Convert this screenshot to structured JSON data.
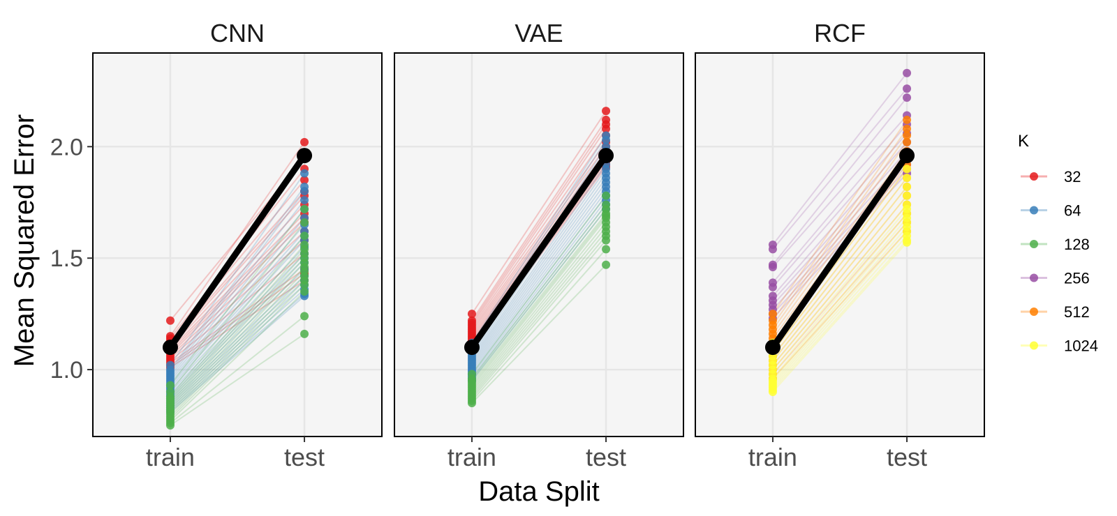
{
  "chart_data": {
    "type": "line",
    "facets": [
      "CNN",
      "VAE",
      "RCF"
    ],
    "x_categories": [
      "train",
      "test"
    ],
    "xlabel": "Data Split",
    "ylabel": "Mean Squared Error",
    "ylim": [
      0.7,
      2.42
    ],
    "yticks": [
      1.0,
      1.5,
      2.0
    ],
    "ytick_labels": [
      "1.0",
      "1.5",
      "2.0"
    ],
    "grid": true,
    "legend": {
      "title": "K",
      "position": "right",
      "entries": [
        {
          "label": "32",
          "color": "#e41a1c"
        },
        {
          "label": "64",
          "color": "#377eb8"
        },
        {
          "label": "128",
          "color": "#4daf4a"
        },
        {
          "label": "256",
          "color": "#984ea3"
        },
        {
          "label": "512",
          "color": "#ff7f00"
        },
        {
          "label": "1024",
          "color": "#ffff33"
        }
      ]
    },
    "mean_line": {
      "color": "#000000",
      "train": 1.1,
      "test": 1.96
    },
    "panels": [
      {
        "name": "CNN",
        "series": [
          {
            "k": "32",
            "color": "#e41a1c",
            "pairs": [
              [
                1.22,
                1.95
              ],
              [
                1.15,
                2.02
              ],
              [
                1.14,
                1.9
              ],
              [
                1.13,
                1.85
              ],
              [
                1.12,
                1.8
              ],
              [
                1.11,
                1.78
              ],
              [
                1.1,
                1.74
              ],
              [
                1.09,
                1.7
              ],
              [
                1.08,
                1.68
              ],
              [
                1.07,
                1.66
              ],
              [
                1.06,
                1.62
              ],
              [
                1.05,
                1.58
              ],
              [
                1.04,
                1.52
              ],
              [
                1.03,
                1.45
              ],
              [
                1.02,
                1.43
              ],
              [
                1.01,
                1.4
              ]
            ]
          },
          {
            "k": "64",
            "color": "#377eb8",
            "pairs": [
              [
                1.02,
                1.88
              ],
              [
                1.0,
                1.82
              ],
              [
                0.99,
                1.8
              ],
              [
                0.98,
                1.76
              ],
              [
                0.97,
                1.72
              ],
              [
                0.96,
                1.68
              ],
              [
                0.95,
                1.65
              ],
              [
                0.94,
                1.62
              ],
              [
                0.93,
                1.6
              ],
              [
                0.92,
                1.58
              ],
              [
                0.91,
                1.55
              ],
              [
                0.9,
                1.52
              ],
              [
                0.89,
                1.5
              ],
              [
                0.88,
                1.48
              ],
              [
                0.87,
                1.45
              ],
              [
                0.86,
                1.42
              ],
              [
                0.85,
                1.4
              ],
              [
                0.84,
                1.38
              ],
              [
                0.83,
                1.36
              ],
              [
                0.82,
                1.34
              ],
              [
                0.81,
                1.33
              ]
            ]
          },
          {
            "k": "128",
            "color": "#4daf4a",
            "pairs": [
              [
                0.93,
                1.72
              ],
              [
                0.9,
                1.66
              ],
              [
                0.88,
                1.6
              ],
              [
                0.87,
                1.56
              ],
              [
                0.86,
                1.54
              ],
              [
                0.85,
                1.52
              ],
              [
                0.84,
                1.5
              ],
              [
                0.83,
                1.48
              ],
              [
                0.82,
                1.46
              ],
              [
                0.81,
                1.44
              ],
              [
                0.8,
                1.42
              ],
              [
                0.79,
                1.4
              ],
              [
                0.78,
                1.38
              ],
              [
                0.77,
                1.35
              ],
              [
                0.76,
                1.24
              ],
              [
                0.75,
                1.16
              ]
            ]
          }
        ]
      },
      {
        "name": "VAE",
        "series": [
          {
            "k": "32",
            "color": "#e41a1c",
            "pairs": [
              [
                1.25,
                2.16
              ],
              [
                1.22,
                2.12
              ],
              [
                1.21,
                2.1
              ],
              [
                1.2,
                2.08
              ],
              [
                1.19,
                2.05
              ],
              [
                1.18,
                2.02
              ],
              [
                1.17,
                2.0
              ],
              [
                1.16,
                1.98
              ],
              [
                1.15,
                1.96
              ],
              [
                1.14,
                1.95
              ],
              [
                1.13,
                1.94
              ],
              [
                1.12,
                1.93
              ],
              [
                1.11,
                1.92
              ],
              [
                1.1,
                1.91
              ]
            ]
          },
          {
            "k": "64",
            "color": "#377eb8",
            "pairs": [
              [
                1.12,
                2.05
              ],
              [
                1.1,
                2.03
              ],
              [
                1.08,
                2.0
              ],
              [
                1.07,
                1.98
              ],
              [
                1.06,
                1.95
              ],
              [
                1.05,
                1.92
              ],
              [
                1.04,
                1.9
              ],
              [
                1.03,
                1.88
              ],
              [
                1.02,
                1.86
              ],
              [
                1.01,
                1.84
              ],
              [
                1.0,
                1.82
              ],
              [
                0.99,
                1.8
              ],
              [
                0.98,
                1.78
              ],
              [
                0.97,
                1.76
              ],
              [
                0.96,
                1.74
              ],
              [
                0.95,
                1.72
              ]
            ]
          },
          {
            "k": "128",
            "color": "#4daf4a",
            "pairs": [
              [
                0.98,
                1.78
              ],
              [
                0.96,
                1.74
              ],
              [
                0.95,
                1.72
              ],
              [
                0.94,
                1.7
              ],
              [
                0.93,
                1.69
              ],
              [
                0.92,
                1.68
              ],
              [
                0.91,
                1.66
              ],
              [
                0.9,
                1.64
              ],
              [
                0.89,
                1.62
              ],
              [
                0.88,
                1.6
              ],
              [
                0.87,
                1.58
              ],
              [
                0.86,
                1.54
              ],
              [
                0.85,
                1.47
              ]
            ]
          }
        ]
      },
      {
        "name": "RCF",
        "series": [
          {
            "k": "256",
            "color": "#984ea3",
            "pairs": [
              [
                1.56,
                2.33
              ],
              [
                1.54,
                2.26
              ],
              [
                1.47,
                2.22
              ],
              [
                1.46,
                2.14
              ],
              [
                1.39,
                2.1
              ],
              [
                1.37,
                2.06
              ],
              [
                1.33,
                2.02
              ],
              [
                1.31,
                1.98
              ],
              [
                1.29,
                1.95
              ],
              [
                1.27,
                1.92
              ],
              [
                1.25,
                1.9
              ],
              [
                1.23,
                1.88
              ]
            ]
          },
          {
            "k": "512",
            "color": "#ff7f00",
            "pairs": [
              [
                1.25,
                2.12
              ],
              [
                1.22,
                2.08
              ],
              [
                1.2,
                2.05
              ],
              [
                1.18,
                2.02
              ],
              [
                1.16,
                1.98
              ],
              [
                1.14,
                1.95
              ],
              [
                1.12,
                1.92
              ],
              [
                1.1,
                1.9
              ],
              [
                1.08,
                1.86
              ],
              [
                1.06,
                1.82
              ],
              [
                1.04,
                1.78
              ],
              [
                1.02,
                1.74
              ],
              [
                1.0,
                1.7
              ],
              [
                0.98,
                1.66
              ],
              [
                0.96,
                1.62
              ]
            ]
          },
          {
            "k": "1024",
            "color": "#ffff33",
            "pairs": [
              [
                1.12,
                1.95
              ],
              [
                1.1,
                1.9
              ],
              [
                1.08,
                1.86
              ],
              [
                1.06,
                1.82
              ],
              [
                1.04,
                1.78
              ],
              [
                1.02,
                1.74
              ],
              [
                1.0,
                1.72
              ],
              [
                0.98,
                1.7
              ],
              [
                0.96,
                1.68
              ],
              [
                0.95,
                1.66
              ],
              [
                0.94,
                1.64
              ],
              [
                0.93,
                1.62
              ],
              [
                0.92,
                1.6
              ],
              [
                0.91,
                1.58
              ],
              [
                0.9,
                1.57
              ]
            ]
          }
        ]
      }
    ]
  }
}
